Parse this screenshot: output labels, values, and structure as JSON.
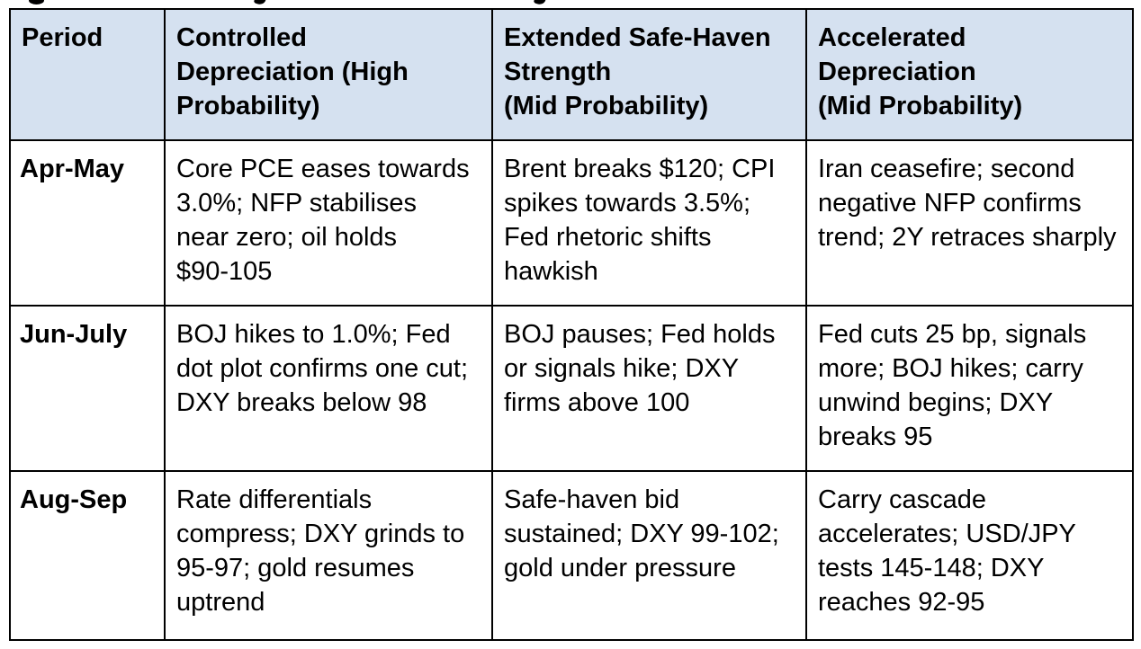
{
  "caption_clipped": {
    "visible": true,
    "note_label": ""
  },
  "colors": {
    "header_bg": "#d5e1f0",
    "border": "#000000",
    "text": "#000000",
    "page_bg": "#ffffff"
  },
  "table": {
    "columns": [
      {
        "id": "period",
        "label": "Period"
      },
      {
        "id": "controlled",
        "label": "Controlled\nDepreciation (High\nProbability)"
      },
      {
        "id": "extended",
        "label": "Extended Safe-Haven\nStrength\n(Mid Probability)"
      },
      {
        "id": "accelerated",
        "label": "Accelerated\nDepreciation\n(Mid Probability)"
      }
    ],
    "rows": [
      {
        "cells": [
          "Apr-May",
          "Core PCE eases towards\n3.0%; NFP stabilises\nnear zero; oil holds\n$90-105",
          "Brent breaks $120; CPI\nspikes towards 3.5%;\nFed rhetoric shifts\nhawkish",
          "Iran ceasefire; second\nnegative NFP confirms\ntrend; 2Y retraces sharply"
        ]
      },
      {
        "cells": [
          "Jun-July",
          "BOJ hikes to 1.0%; Fed\ndot plot confirms one cut;\nDXY breaks below 98",
          "BOJ pauses; Fed holds\nor signals hike; DXY\nfirms above 100",
          "Fed cuts 25 bp, signals\nmore; BOJ hikes; carry\nunwind begins; DXY\nbreaks 95"
        ]
      },
      {
        "cells": [
          "Aug-Sep",
          "Rate differentials\ncompress; DXY grinds to\n95-97; gold resumes\nuptrend",
          "Safe-haven bid\nsustained; DXY 99-102;\ngold under pressure",
          "Carry cascade\naccelerates; USD/JPY\ntests 145-148; DXY\nreaches 92-95"
        ]
      }
    ]
  }
}
